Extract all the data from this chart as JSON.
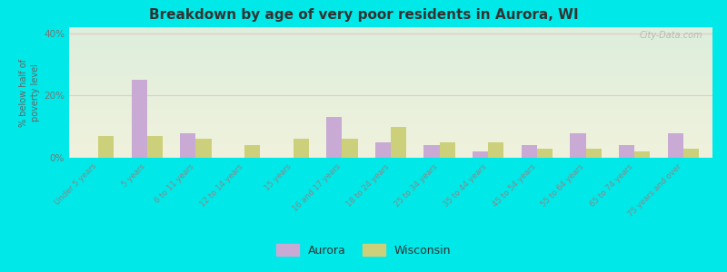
{
  "title": "Breakdown by age of very poor residents in Aurora, WI",
  "ylabel": "% below half of\npoverty level",
  "categories": [
    "Under 5 years",
    "5 years",
    "6 to 11 years",
    "12 to 14 years",
    "15 years",
    "16 and 17 years",
    "18 to 24 years",
    "25 to 34 years",
    "35 to 44 years",
    "45 to 54 years",
    "55 to 64 years",
    "65 to 74 years",
    "75 years and over"
  ],
  "aurora_values": [
    0,
    25,
    8,
    0,
    0,
    13,
    5,
    4,
    2,
    4,
    8,
    4,
    8
  ],
  "wisconsin_values": [
    7,
    7,
    6,
    4,
    6,
    6,
    10,
    5,
    5,
    3,
    3,
    2,
    3
  ],
  "aurora_color": "#c8aad4",
  "wisconsin_color": "#ccd07a",
  "bg_outer": "#00e8e8",
  "bg_plot_top": "#ddeedd",
  "bg_plot_bottom": "#f0f2dc",
  "grid_color": "#e8c8c8",
  "ylim": [
    0,
    42
  ],
  "yticks": [
    0,
    20,
    40
  ],
  "ytick_labels": [
    "0%",
    "20%",
    "40%"
  ],
  "watermark": "City-Data.com",
  "legend_aurora": "Aurora",
  "legend_wisconsin": "Wisconsin",
  "bar_width": 0.32
}
